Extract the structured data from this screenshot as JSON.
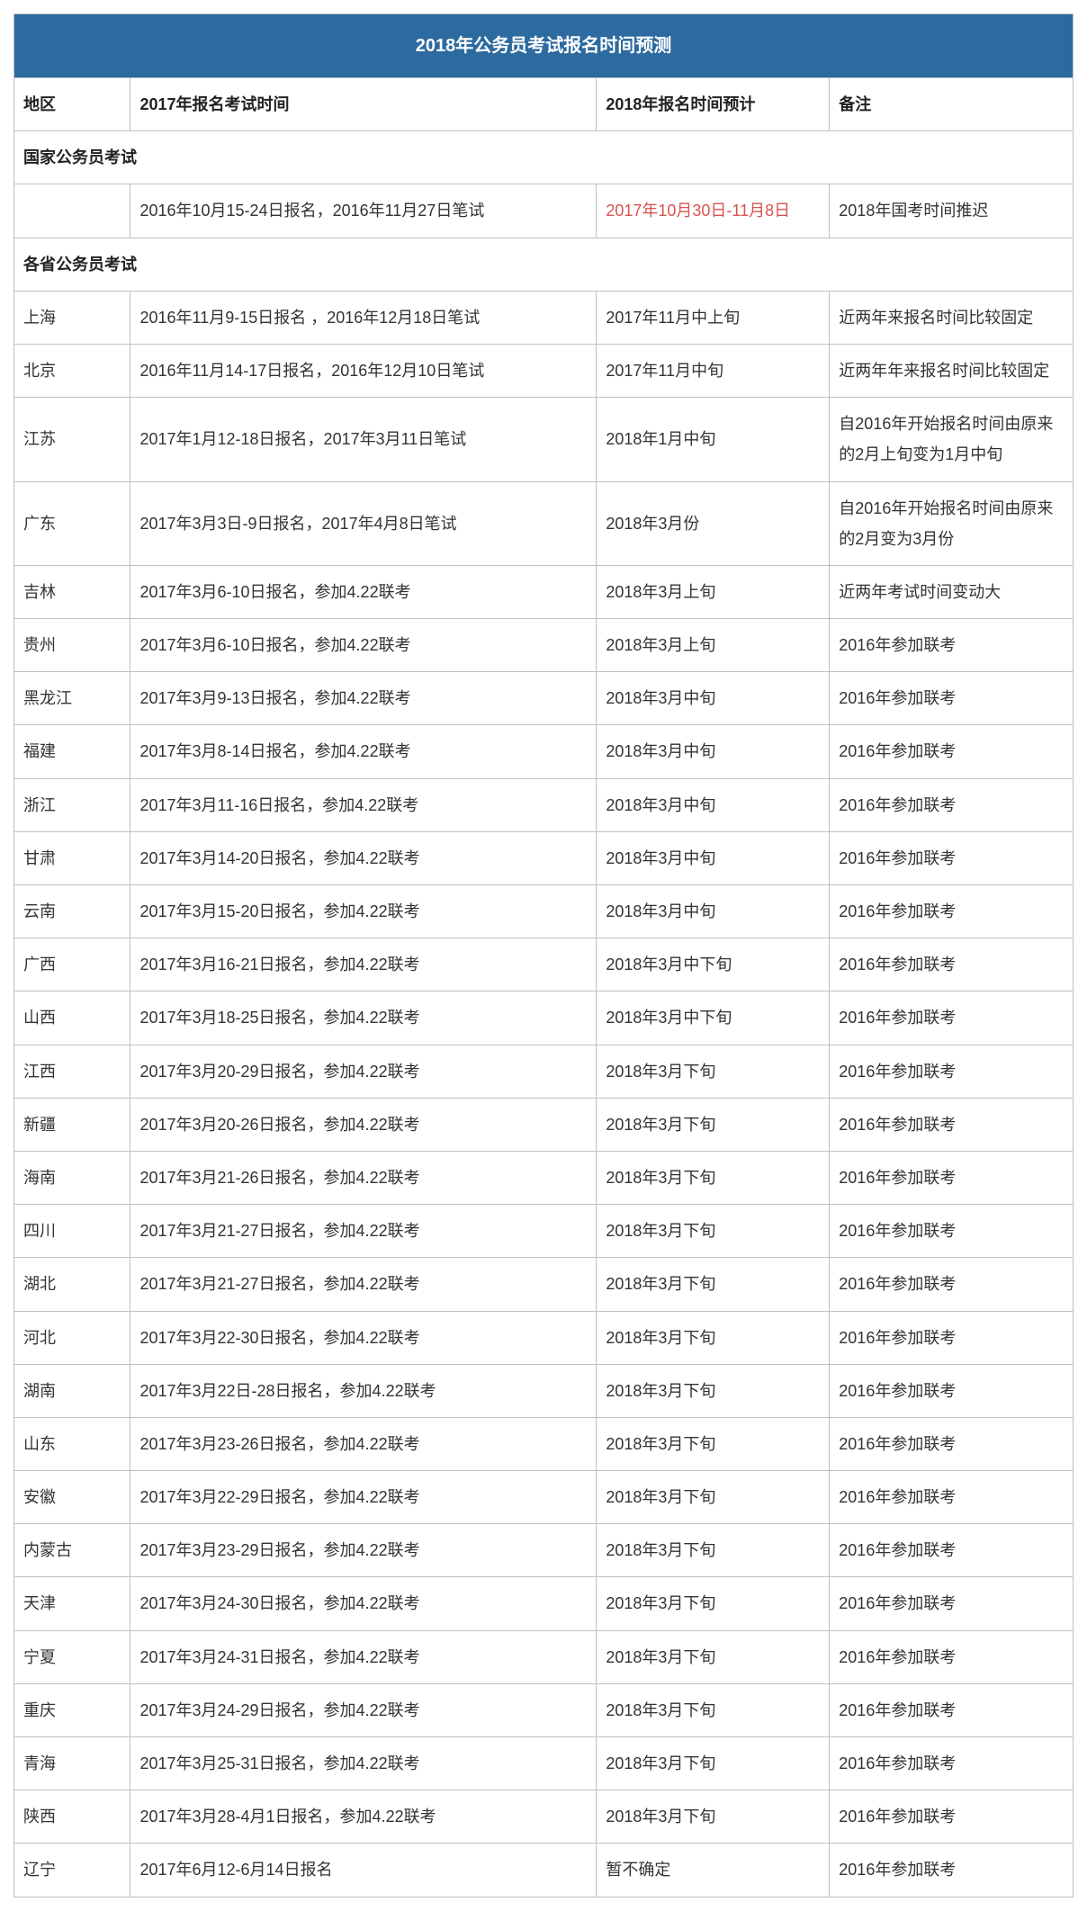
{
  "title": "2018年公务员考试报名时间预测",
  "columns": [
    "地区",
    "2017年报名考试时间",
    "2018年报名时间预计",
    "备注"
  ],
  "section1": {
    "label": "国家公务员考试"
  },
  "national": {
    "region": "",
    "y2017": "2016年10月15-24日报名，2016年11月27日笔试",
    "y2018": "2017年10月30日-11月8日",
    "note": "2018年国考时间推迟"
  },
  "section2": {
    "label": "各省公务员考试"
  },
  "rows": [
    {
      "region": "上海",
      "y2017": "2016年11月9-15日报名 ，2016年12月18日笔试",
      "y2018": "2017年11月中上旬",
      "note": "近两年来报名时间比较固定"
    },
    {
      "region": "北京",
      "y2017": "2016年11月14-17日报名，2016年12月10日笔试",
      "y2018": "2017年11月中旬",
      "note": "近两年年来报名时间比较固定"
    },
    {
      "region": "江苏",
      "y2017": "2017年1月12-18日报名，2017年3月11日笔试",
      "y2018": "2018年1月中旬",
      "note": "自2016年开始报名时间由原来的2月上旬变为1月中旬"
    },
    {
      "region": "广东",
      "y2017": "2017年3月3日-9日报名，2017年4月8日笔试",
      "y2018": "2018年3月份",
      "note": "自2016年开始报名时间由原来的2月变为3月份"
    },
    {
      "region": "吉林",
      "y2017": "2017年3月6-10日报名，参加4.22联考",
      "y2018": "2018年3月上旬",
      "note": "近两年考试时间变动大"
    },
    {
      "region": "贵州",
      "y2017": "2017年3月6-10日报名，参加4.22联考",
      "y2018": "2018年3月上旬",
      "note": "2016年参加联考"
    },
    {
      "region": "黑龙江",
      "y2017": "2017年3月9-13日报名，参加4.22联考",
      "y2018": "2018年3月中旬",
      "note": "2016年参加联考"
    },
    {
      "region": "福建",
      "y2017": "2017年3月8-14日报名，参加4.22联考",
      "y2018": "2018年3月中旬",
      "note": "2016年参加联考"
    },
    {
      "region": "浙江",
      "y2017": "2017年3月11-16日报名，参加4.22联考",
      "y2018": "2018年3月中旬",
      "note": "2016年参加联考"
    },
    {
      "region": "甘肃",
      "y2017": "2017年3月14-20日报名，参加4.22联考",
      "y2018": "2018年3月中旬",
      "note": "2016年参加联考"
    },
    {
      "region": "云南",
      "y2017": "2017年3月15-20日报名，参加4.22联考",
      "y2018": "2018年3月中旬",
      "note": "2016年参加联考"
    },
    {
      "region": "广西",
      "y2017": "2017年3月16-21日报名，参加4.22联考",
      "y2018": "2018年3月中下旬",
      "note": "2016年参加联考"
    },
    {
      "region": "山西",
      "y2017": "2017年3月18-25日报名，参加4.22联考",
      "y2018": "2018年3月中下旬",
      "note": "2016年参加联考"
    },
    {
      "region": "江西",
      "y2017": "2017年3月20-29日报名，参加4.22联考",
      "y2018": "2018年3月下旬",
      "note": "2016年参加联考"
    },
    {
      "region": "新疆",
      "y2017": "2017年3月20-26日报名，参加4.22联考",
      "y2018": "2018年3月下旬",
      "note": "2016年参加联考"
    },
    {
      "region": "海南",
      "y2017": "2017年3月21-26日报名，参加4.22联考",
      "y2018": "2018年3月下旬",
      "note": "2016年参加联考"
    },
    {
      "region": "四川",
      "y2017": "2017年3月21-27日报名，参加4.22联考",
      "y2018": "2018年3月下旬",
      "note": "2016年参加联考"
    },
    {
      "region": "湖北",
      "y2017": "2017年3月21-27日报名，参加4.22联考",
      "y2018": "2018年3月下旬",
      "note": "2016年参加联考"
    },
    {
      "region": "河北",
      "y2017": "2017年3月22-30日报名，参加4.22联考",
      "y2018": "2018年3月下旬",
      "note": "2016年参加联考"
    },
    {
      "region": "湖南",
      "y2017": "2017年3月22日-28日报名，参加4.22联考",
      "y2018": "2018年3月下旬",
      "note": "2016年参加联考"
    },
    {
      "region": "山东",
      "y2017": "2017年3月23-26日报名，参加4.22联考",
      "y2018": "2018年3月下旬",
      "note": "2016年参加联考"
    },
    {
      "region": "安徽",
      "y2017": "2017年3月22-29日报名，参加4.22联考",
      "y2018": "2018年3月下旬",
      "note": "2016年参加联考"
    },
    {
      "region": "内蒙古",
      "y2017": "2017年3月23-29日报名，参加4.22联考",
      "y2018": "2018年3月下旬",
      "note": "2016年参加联考"
    },
    {
      "region": "天津",
      "y2017": "2017年3月24-30日报名，参加4.22联考",
      "y2018": "2018年3月下旬",
      "note": "2016年参加联考"
    },
    {
      "region": "宁夏",
      "y2017": "2017年3月24-31日报名，参加4.22联考",
      "y2018": "2018年3月下旬",
      "note": "2016年参加联考"
    },
    {
      "region": "重庆",
      "y2017": "2017年3月24-29日报名，参加4.22联考",
      "y2018": "2018年3月下旬",
      "note": "2016年参加联考"
    },
    {
      "region": "青海",
      "y2017": "2017年3月25-31日报名，参加4.22联考",
      "y2018": "2018年3月下旬",
      "note": "2016年参加联考"
    },
    {
      "region": "陕西",
      "y2017": "2017年3月28-4月1日报名，参加4.22联考",
      "y2018": "2018年3月下旬",
      "note": "2016年参加联考"
    },
    {
      "region": "辽宁",
      "y2017": "2017年6月12-6月14日报名",
      "y2018": "暂不确定",
      "note": "2016年参加联考"
    }
  ],
  "style": {
    "header_bg": "#2d6a9f",
    "header_color": "#ffffff",
    "border_color": "#b8c2cc",
    "text_color": "#333333",
    "highlight_color": "#d9534f",
    "font_size_body": 18,
    "font_size_title": 20
  }
}
